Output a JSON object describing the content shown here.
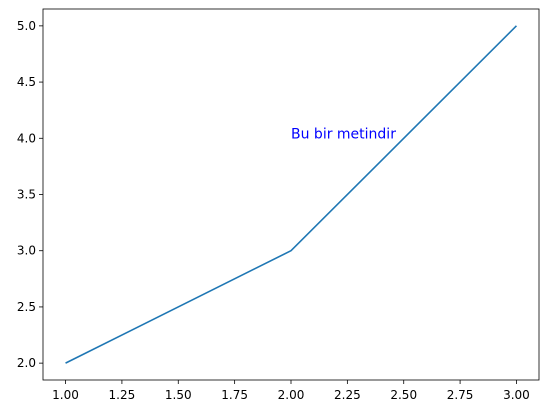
{
  "chart_data": {
    "type": "line",
    "title": "",
    "xlabel": "",
    "ylabel": "",
    "series": [
      {
        "x": [
          1,
          2,
          3
        ],
        "y": [
          2,
          3,
          5
        ],
        "color": "#1f77b4"
      }
    ],
    "xlim": [
      0.9,
      3.1
    ],
    "ylim": [
      1.85,
      5.15
    ],
    "x_ticks": [
      1.0,
      1.25,
      1.5,
      1.75,
      2.0,
      2.25,
      2.5,
      2.75,
      3.0
    ],
    "x_tick_labels": [
      "1.00",
      "1.25",
      "1.50",
      "1.75",
      "2.00",
      "2.25",
      "2.50",
      "2.75",
      "3.00"
    ],
    "y_ticks": [
      2.0,
      2.5,
      3.0,
      3.5,
      4.0,
      4.5,
      5.0
    ],
    "y_tick_labels": [
      "2.0",
      "2.5",
      "3.0",
      "3.5",
      "4.0",
      "4.5",
      "5.0"
    ],
    "grid": false,
    "annotations": [
      {
        "text": "Bu bir metindir",
        "x": 2.0,
        "y": 4.0,
        "color": "#0000ff"
      }
    ]
  }
}
